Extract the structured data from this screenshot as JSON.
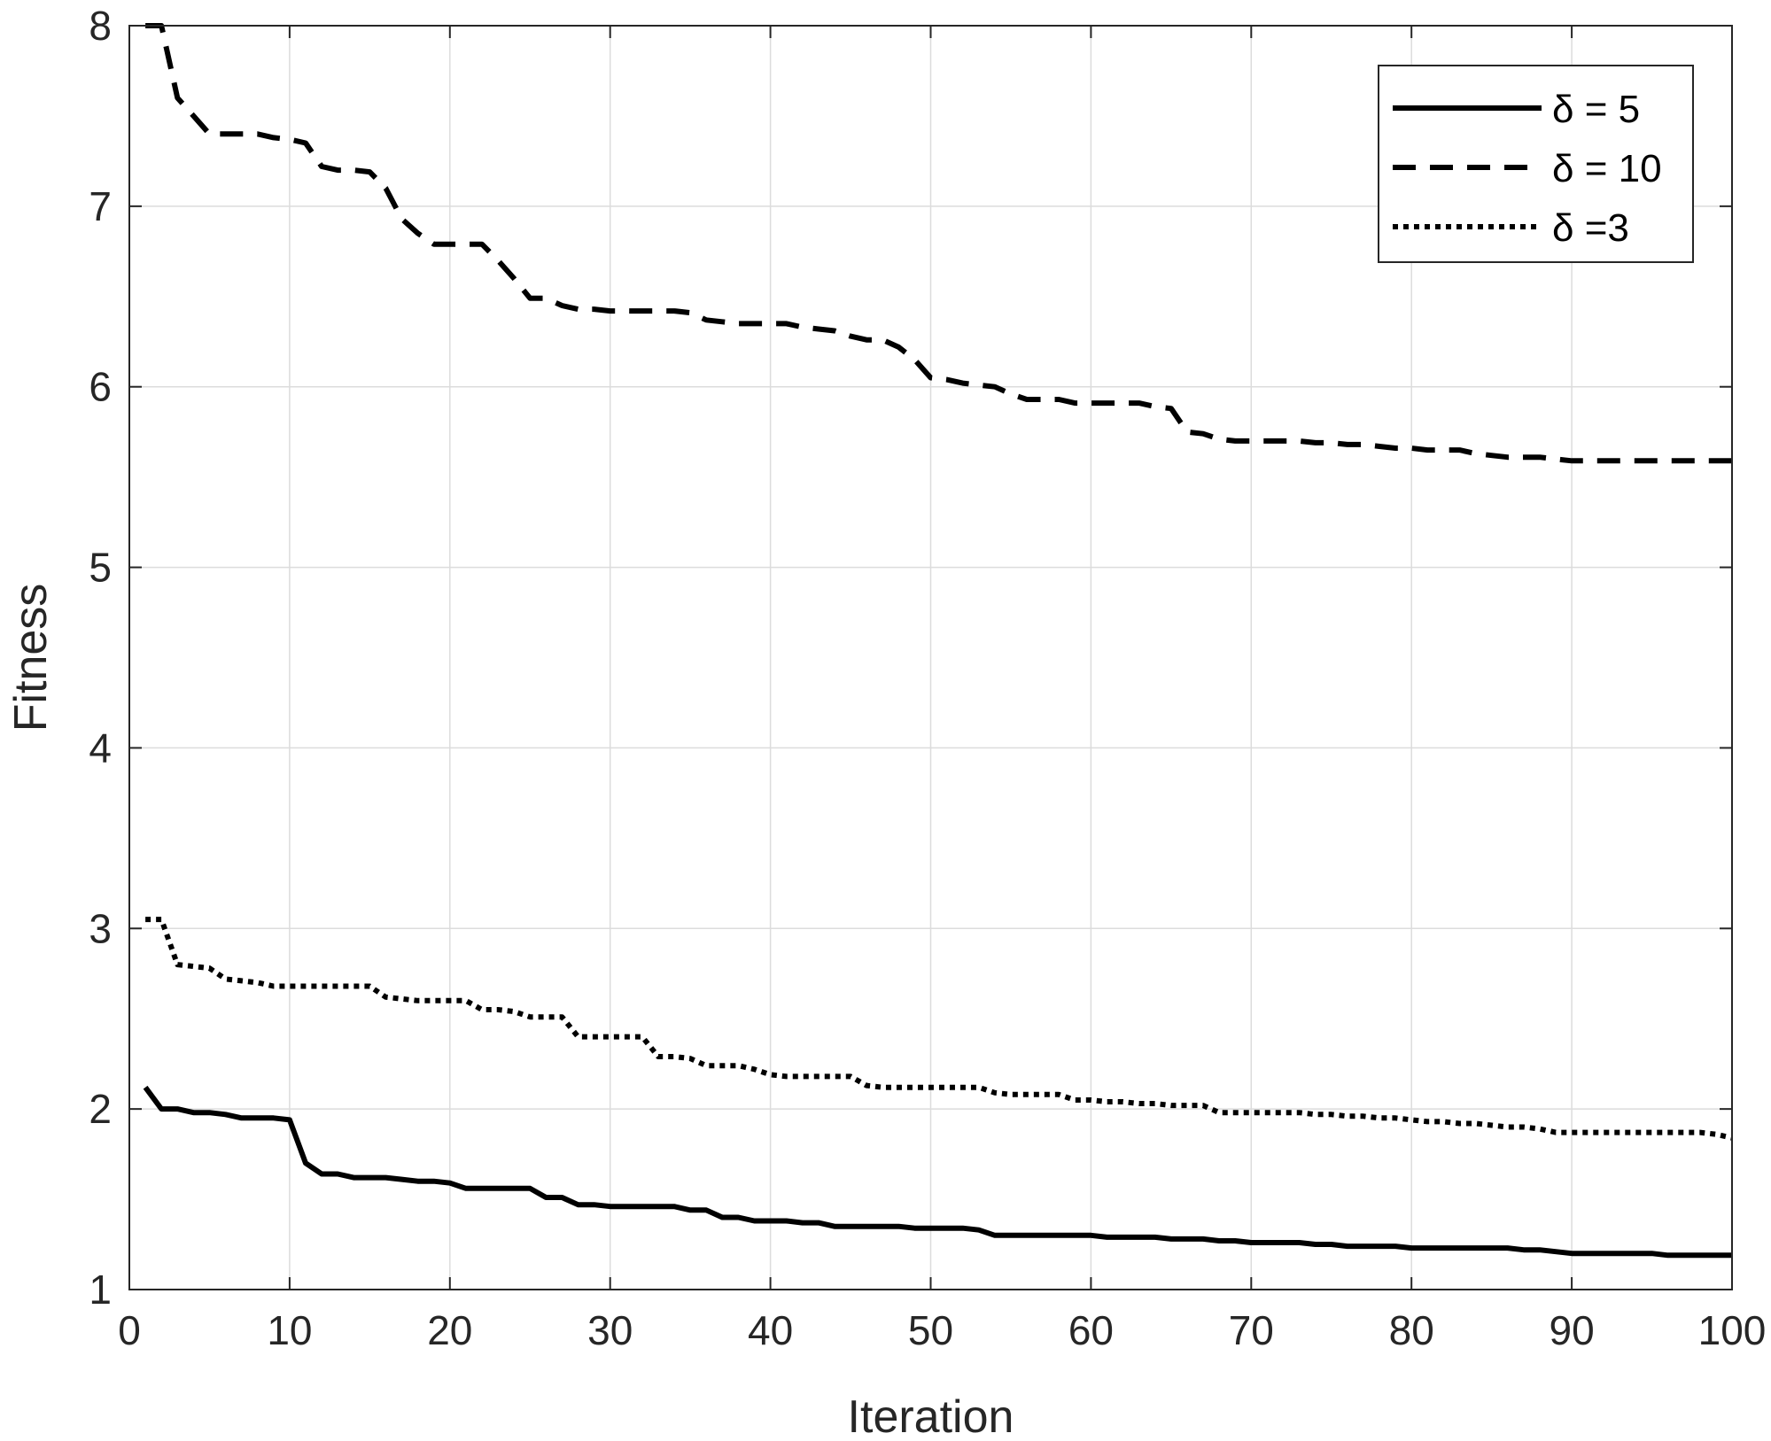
{
  "chart_data": {
    "type": "line",
    "title": "",
    "xlabel": "Iteration",
    "ylabel": "Fitness",
    "xlim": [
      0,
      100
    ],
    "ylim": [
      1,
      8
    ],
    "xticks": [
      0,
      10,
      20,
      30,
      40,
      50,
      60,
      70,
      80,
      90,
      100
    ],
    "yticks": [
      1,
      2,
      3,
      4,
      5,
      6,
      7,
      8
    ],
    "grid": true,
    "legend_position": "top-right",
    "x": [
      1,
      2,
      3,
      4,
      5,
      6,
      7,
      8,
      9,
      10,
      11,
      12,
      13,
      14,
      15,
      16,
      17,
      18,
      19,
      20,
      21,
      22,
      23,
      24,
      25,
      26,
      27,
      28,
      29,
      30,
      31,
      32,
      33,
      34,
      35,
      36,
      37,
      38,
      39,
      40,
      41,
      42,
      43,
      44,
      45,
      46,
      47,
      48,
      49,
      50,
      51,
      52,
      53,
      54,
      55,
      56,
      57,
      58,
      59,
      60,
      61,
      62,
      63,
      64,
      65,
      66,
      67,
      68,
      69,
      70,
      71,
      72,
      73,
      74,
      75,
      76,
      77,
      78,
      79,
      80,
      81,
      82,
      83,
      84,
      85,
      86,
      87,
      88,
      89,
      90,
      91,
      92,
      93,
      94,
      95,
      96,
      97,
      98,
      99,
      100
    ],
    "series": [
      {
        "name": "δ = 5",
        "style": "solid",
        "color": "#000000",
        "values": [
          2.12,
          2.0,
          2.0,
          1.98,
          1.98,
          1.97,
          1.95,
          1.95,
          1.95,
          1.94,
          1.7,
          1.64,
          1.64,
          1.62,
          1.62,
          1.62,
          1.61,
          1.6,
          1.6,
          1.59,
          1.56,
          1.56,
          1.56,
          1.56,
          1.56,
          1.51,
          1.51,
          1.47,
          1.47,
          1.46,
          1.46,
          1.46,
          1.46,
          1.46,
          1.44,
          1.44,
          1.4,
          1.4,
          1.38,
          1.38,
          1.38,
          1.37,
          1.37,
          1.35,
          1.35,
          1.35,
          1.35,
          1.35,
          1.34,
          1.34,
          1.34,
          1.34,
          1.33,
          1.3,
          1.3,
          1.3,
          1.3,
          1.3,
          1.3,
          1.3,
          1.29,
          1.29,
          1.29,
          1.29,
          1.28,
          1.28,
          1.28,
          1.27,
          1.27,
          1.26,
          1.26,
          1.26,
          1.26,
          1.25,
          1.25,
          1.24,
          1.24,
          1.24,
          1.24,
          1.23,
          1.23,
          1.23,
          1.23,
          1.23,
          1.23,
          1.23,
          1.22,
          1.22,
          1.21,
          1.2,
          1.2,
          1.2,
          1.2,
          1.2,
          1.2,
          1.19,
          1.19,
          1.19,
          1.19,
          1.19
        ]
      },
      {
        "name": "δ = 10",
        "style": "dashed",
        "color": "#000000",
        "values": [
          8.0,
          8.0,
          7.6,
          7.5,
          7.4,
          7.4,
          7.4,
          7.4,
          7.38,
          7.37,
          7.35,
          7.22,
          7.2,
          7.2,
          7.19,
          7.1,
          6.93,
          6.85,
          6.79,
          6.79,
          6.79,
          6.79,
          6.7,
          6.6,
          6.49,
          6.49,
          6.45,
          6.43,
          6.43,
          6.42,
          6.42,
          6.42,
          6.42,
          6.42,
          6.41,
          6.37,
          6.36,
          6.35,
          6.35,
          6.35,
          6.35,
          6.33,
          6.32,
          6.31,
          6.28,
          6.26,
          6.26,
          6.22,
          6.15,
          6.05,
          6.04,
          6.02,
          6.01,
          6.0,
          5.96,
          5.93,
          5.93,
          5.93,
          5.91,
          5.91,
          5.91,
          5.91,
          5.91,
          5.89,
          5.88,
          5.75,
          5.74,
          5.71,
          5.7,
          5.7,
          5.7,
          5.7,
          5.7,
          5.69,
          5.69,
          5.68,
          5.68,
          5.67,
          5.66,
          5.66,
          5.65,
          5.65,
          5.65,
          5.63,
          5.62,
          5.61,
          5.61,
          5.61,
          5.6,
          5.59,
          5.59,
          5.59,
          5.59,
          5.59,
          5.59,
          5.59,
          5.59,
          5.59,
          5.59,
          5.59
        ]
      },
      {
        "name": "δ =3",
        "style": "dotted",
        "color": "#000000",
        "values": [
          3.05,
          3.05,
          2.8,
          2.79,
          2.78,
          2.72,
          2.71,
          2.7,
          2.68,
          2.68,
          2.68,
          2.68,
          2.68,
          2.68,
          2.68,
          2.62,
          2.61,
          2.6,
          2.6,
          2.6,
          2.6,
          2.55,
          2.55,
          2.54,
          2.51,
          2.51,
          2.51,
          2.4,
          2.4,
          2.4,
          2.4,
          2.4,
          2.29,
          2.29,
          2.28,
          2.24,
          2.24,
          2.24,
          2.22,
          2.19,
          2.18,
          2.18,
          2.18,
          2.18,
          2.18,
          2.13,
          2.12,
          2.12,
          2.12,
          2.12,
          2.12,
          2.12,
          2.12,
          2.09,
          2.08,
          2.08,
          2.08,
          2.08,
          2.05,
          2.05,
          2.04,
          2.04,
          2.03,
          2.03,
          2.02,
          2.02,
          2.02,
          1.98,
          1.98,
          1.98,
          1.98,
          1.98,
          1.98,
          1.97,
          1.97,
          1.96,
          1.96,
          1.95,
          1.95,
          1.94,
          1.93,
          1.93,
          1.92,
          1.92,
          1.91,
          1.9,
          1.9,
          1.89,
          1.87,
          1.87,
          1.87,
          1.87,
          1.87,
          1.87,
          1.87,
          1.87,
          1.87,
          1.87,
          1.86,
          1.84
        ]
      }
    ]
  }
}
